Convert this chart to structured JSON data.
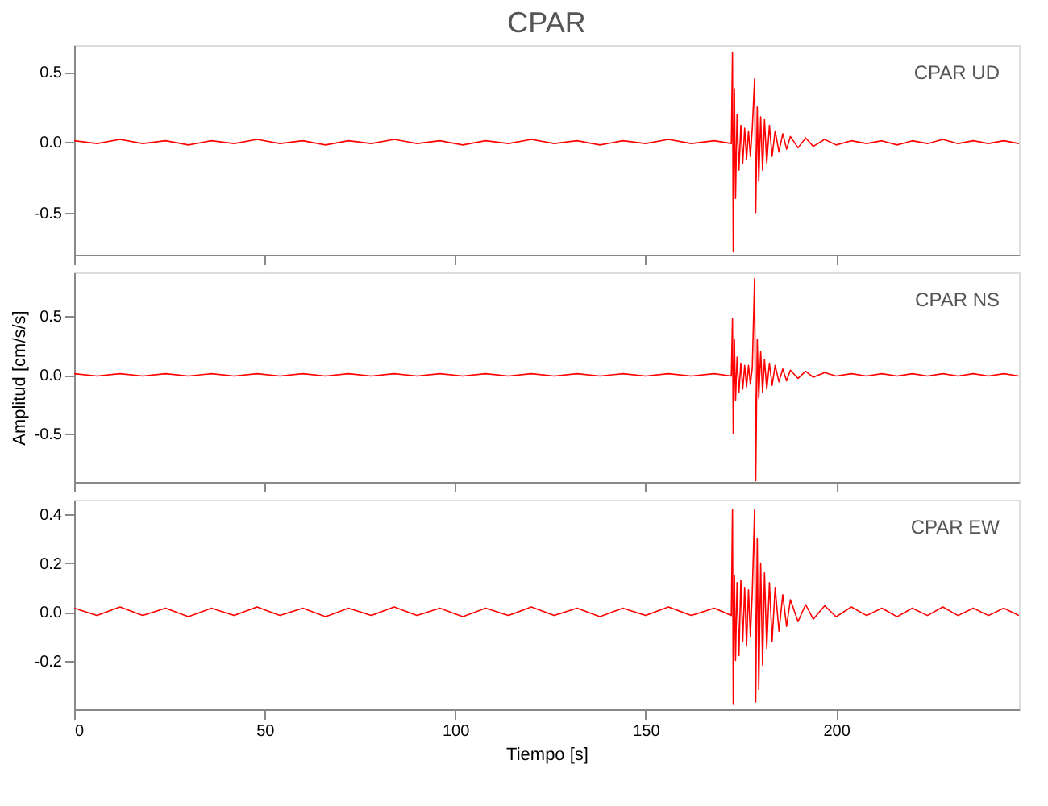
{
  "chart_data": [
    {
      "type": "line",
      "title": "CPAR",
      "annotations": [
        "CPAR   UD"
      ],
      "tick_labels": "y",
      "grid": false,
      "line_style": "solid",
      "marker": "none",
      "xlim": [
        0,
        248
      ],
      "xticks": [
        0,
        50,
        100,
        150,
        200
      ],
      "ylim": [
        -0.8,
        0.69
      ],
      "yticks": [
        {
          "value": 0.5,
          "label": "0.5"
        },
        {
          "value": 0,
          "label": "0.0"
        },
        {
          "value": -0.5,
          "label": "-0.5"
        }
      ],
      "series": [
        {
          "color": "#ff0000",
          "x": [
            0,
            6,
            12,
            18,
            24,
            30,
            36,
            42,
            48,
            54,
            60,
            66,
            72,
            78,
            84,
            90,
            96,
            102,
            108,
            114,
            120,
            126,
            132,
            138,
            144,
            150,
            156,
            162,
            168,
            172.5,
            172.8,
            173.0,
            173.3,
            173.6,
            174,
            174.5,
            175,
            175.5,
            176,
            176.5,
            177,
            177.5,
            178,
            178.6,
            178.9,
            179.3,
            179.7,
            180.2,
            180.7,
            181.2,
            181.8,
            182.5,
            183.2,
            184,
            185,
            186,
            187,
            188,
            190,
            192,
            194,
            197,
            200,
            204,
            208,
            212,
            216,
            220,
            224,
            228,
            232,
            236,
            240,
            244,
            248
          ],
          "values": [
            0.01,
            -0.01,
            0.02,
            -0.01,
            0.01,
            -0.02,
            0.01,
            -0.01,
            0.02,
            -0.01,
            0.01,
            -0.02,
            0.01,
            -0.01,
            0.02,
            -0.01,
            0.01,
            -0.02,
            0.01,
            -0.01,
            0.02,
            -0.01,
            0.01,
            -0.02,
            0.01,
            -0.01,
            0.02,
            -0.01,
            0.01,
            -0.01,
            0.64,
            -0.78,
            0.38,
            -0.4,
            0.2,
            -0.2,
            0.12,
            -0.15,
            0.1,
            -0.12,
            0.08,
            -0.1,
            0.1,
            0.45,
            -0.5,
            0.25,
            -0.28,
            0.18,
            -0.2,
            0.16,
            -0.15,
            0.12,
            -0.1,
            0.08,
            -0.07,
            0.06,
            -0.05,
            0.04,
            -0.04,
            0.03,
            -0.03,
            0.02,
            -0.02,
            0.01,
            -0.01,
            0.01,
            -0.02,
            0.01,
            -0.01,
            0.02,
            -0.01,
            0.01,
            -0.01,
            0.01,
            -0.01
          ]
        }
      ]
    },
    {
      "type": "line",
      "annotations": [
        "CPAR   NS"
      ],
      "ylabel": "Amplitud [cm/s/s]",
      "tick_labels": "y",
      "grid": false,
      "line_style": "solid",
      "marker": "none",
      "xlim": [
        0,
        248
      ],
      "xticks": [
        0,
        50,
        100,
        150,
        200
      ],
      "ylim": [
        -0.91,
        0.87
      ],
      "yticks": [
        {
          "value": 0.5,
          "label": "0.5"
        },
        {
          "value": 0,
          "label": "0.0"
        },
        {
          "value": -0.5,
          "label": "-0.5"
        }
      ],
      "series": [
        {
          "color": "#ff0000",
          "x": [
            0,
            6,
            12,
            18,
            24,
            30,
            36,
            42,
            48,
            54,
            60,
            66,
            72,
            78,
            84,
            90,
            96,
            102,
            108,
            114,
            120,
            126,
            132,
            138,
            144,
            150,
            156,
            162,
            168,
            172.5,
            172.8,
            173.0,
            173.3,
            173.6,
            174,
            174.5,
            175,
            175.5,
            176,
            176.5,
            177,
            177.5,
            178,
            178.6,
            178.9,
            179.3,
            179.7,
            180.2,
            180.7,
            181.2,
            181.8,
            182.5,
            183.2,
            184,
            185,
            186,
            187,
            188,
            190,
            192,
            194,
            197,
            200,
            204,
            208,
            212,
            216,
            220,
            224,
            228,
            232,
            236,
            240,
            244,
            248
          ],
          "values": [
            0.01,
            -0.01,
            0.01,
            -0.01,
            0.01,
            -0.01,
            0.01,
            -0.01,
            0.01,
            -0.01,
            0.01,
            -0.01,
            0.01,
            -0.01,
            0.01,
            -0.01,
            0.01,
            -0.01,
            0.01,
            -0.01,
            0.01,
            -0.01,
            0.01,
            -0.01,
            0.01,
            -0.01,
            0.01,
            -0.01,
            0.01,
            -0.01,
            0.48,
            -0.5,
            0.3,
            -0.22,
            0.15,
            -0.15,
            0.1,
            -0.12,
            0.08,
            -0.1,
            0.08,
            -0.08,
            0.06,
            0.82,
            -0.9,
            0.3,
            -0.2,
            0.2,
            -0.15,
            0.13,
            -0.12,
            0.1,
            -0.09,
            0.08,
            -0.06,
            0.05,
            -0.05,
            0.04,
            -0.03,
            0.03,
            -0.02,
            0.02,
            -0.01,
            0.01,
            -0.01,
            0.01,
            -0.01,
            0.01,
            -0.01,
            0.01,
            -0.01,
            0.01,
            -0.01,
            0.01,
            -0.01
          ]
        }
      ]
    },
    {
      "type": "line",
      "annotations": [
        "CPAR   EW"
      ],
      "xlabel": "Tiempo [s]",
      "grid": false,
      "line_style": "solid",
      "marker": "none",
      "xlim": [
        0,
        248
      ],
      "xticks": [
        0,
        50,
        100,
        150,
        200
      ],
      "ylim": [
        -0.4,
        0.46
      ],
      "yticks": [
        {
          "value": 0.4,
          "label": "0.4"
        },
        {
          "value": 0.2,
          "label": "0.2"
        },
        {
          "value": 0,
          "label": "0.0"
        },
        {
          "value": -0.2,
          "label": "-0.2"
        }
      ],
      "series": [
        {
          "color": "#ff0000",
          "x": [
            0,
            6,
            12,
            18,
            24,
            30,
            36,
            42,
            48,
            54,
            60,
            66,
            72,
            78,
            84,
            90,
            96,
            102,
            108,
            114,
            120,
            126,
            132,
            138,
            144,
            150,
            156,
            162,
            168,
            172.5,
            172.8,
            173.0,
            173.3,
            173.6,
            174,
            174.5,
            175,
            175.5,
            176,
            176.5,
            177,
            177.5,
            178,
            178.6,
            178.9,
            179.3,
            179.7,
            180.2,
            180.7,
            181.2,
            181.8,
            182.5,
            183.2,
            184,
            185,
            186,
            187,
            188,
            190,
            192,
            194,
            197,
            200,
            204,
            208,
            212,
            216,
            220,
            224,
            228,
            232,
            236,
            240,
            244,
            248
          ],
          "values": [
            0.015,
            -0.015,
            0.02,
            -0.015,
            0.015,
            -0.02,
            0.015,
            -0.015,
            0.02,
            -0.015,
            0.015,
            -0.02,
            0.015,
            -0.015,
            0.02,
            -0.015,
            0.015,
            -0.02,
            0.015,
            -0.015,
            0.02,
            -0.015,
            0.015,
            -0.02,
            0.015,
            -0.015,
            0.02,
            -0.015,
            0.015,
            -0.015,
            0.42,
            -0.38,
            0.15,
            -0.2,
            0.12,
            -0.18,
            0.13,
            -0.12,
            0.1,
            -0.14,
            0.09,
            -0.1,
            0.08,
            0.42,
            -0.37,
            0.3,
            -0.32,
            0.2,
            -0.22,
            0.16,
            -0.15,
            0.12,
            -0.12,
            0.1,
            -0.08,
            0.07,
            -0.06,
            0.05,
            -0.04,
            0.03,
            -0.03,
            0.025,
            -0.02,
            0.02,
            -0.015,
            0.015,
            -0.02,
            0.015,
            -0.015,
            0.02,
            -0.015,
            0.015,
            -0.015,
            0.015,
            -0.015
          ]
        }
      ]
    }
  ]
}
